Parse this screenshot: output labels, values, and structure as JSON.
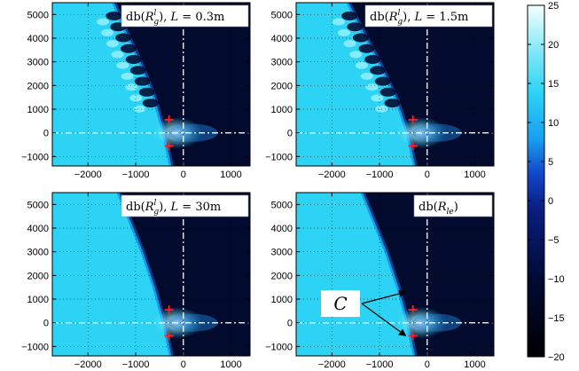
{
  "chart_data": {
    "type": "heatmap",
    "colorbar": {
      "min": -20,
      "max": 25,
      "ticks": [
        "25",
        "20",
        "15",
        "10",
        "5",
        "0",
        "−5",
        "−10",
        "−15",
        "−20"
      ],
      "tick_values": [
        25,
        20,
        15,
        10,
        5,
        0,
        -5,
        -10,
        -15,
        -20
      ]
    },
    "xlim": [
      -2750,
      1400
    ],
    "ylim": [
      -1400,
      5500
    ],
    "xticks": [
      -2000,
      -1000,
      0,
      1000
    ],
    "xtick_labels": [
      "−2000",
      "−1000",
      "0",
      "1000"
    ],
    "yticks": [
      5000,
      4000,
      3000,
      2000,
      1000,
      0,
      -1000
    ],
    "ytick_labels": [
      "5000",
      "4000",
      "3000",
      "2000",
      "1000",
      "0",
      "−1000"
    ],
    "marker_color": "#ff2020",
    "panels": [
      {
        "label": {
          "pre": "db(",
          "main": "R",
          "sub": "g",
          "sup": "l",
          "post": "), ",
          "param": "L",
          "eq": " = 0.3m"
        },
        "boundary": [
          [
            -250,
            -1400
          ],
          [
            -400,
            0
          ],
          [
            -600,
            1500
          ],
          [
            -900,
            3000
          ],
          [
            -1250,
            4500
          ],
          [
            -1450,
            5500
          ]
        ],
        "ripple": true,
        "markers": [
          [
            -300,
            550
          ],
          [
            -300,
            -550
          ]
        ]
      },
      {
        "label": {
          "pre": "db(",
          "main": "R",
          "sub": "g",
          "sup": "l",
          "post": "), ",
          "param": "L",
          "eq": " = 1.5m"
        },
        "boundary": [
          [
            -250,
            -1400
          ],
          [
            -400,
            0
          ],
          [
            -650,
            1500
          ],
          [
            -1000,
            3000
          ],
          [
            -1400,
            4500
          ],
          [
            -1650,
            5500
          ]
        ],
        "ripple": true,
        "markers": [
          [
            -300,
            550
          ],
          [
            -300,
            -550
          ]
        ]
      },
      {
        "label": {
          "pre": "db(",
          "main": "R",
          "sub": "g",
          "sup": "l",
          "post": "), ",
          "param": "L",
          "eq": " = 30m"
        },
        "boundary": [
          [
            -250,
            -1400
          ],
          [
            -400,
            0
          ],
          [
            -600,
            1500
          ],
          [
            -850,
            3000
          ],
          [
            -1150,
            4500
          ],
          [
            -1350,
            5500
          ]
        ],
        "ripple": false,
        "markers": [
          [
            -300,
            550
          ],
          [
            -300,
            -550
          ]
        ]
      },
      {
        "label": {
          "pre": "db(",
          "main": "R",
          "sub": "le",
          "sup": "",
          "post": ")",
          "param": "",
          "eq": ""
        },
        "boundary": [
          [
            -250,
            -1400
          ],
          [
            -400,
            0
          ],
          [
            -600,
            1500
          ],
          [
            -850,
            3000
          ],
          [
            -1150,
            4500
          ],
          [
            -1350,
            5500
          ]
        ],
        "ripple": false,
        "markers": [
          [
            -300,
            550
          ],
          [
            -300,
            -550
          ]
        ],
        "annotation": {
          "text": "C",
          "arrows_to": [
            [
              -300,
              1300
            ],
            [
              -300,
              -550
            ]
          ]
        }
      }
    ]
  }
}
